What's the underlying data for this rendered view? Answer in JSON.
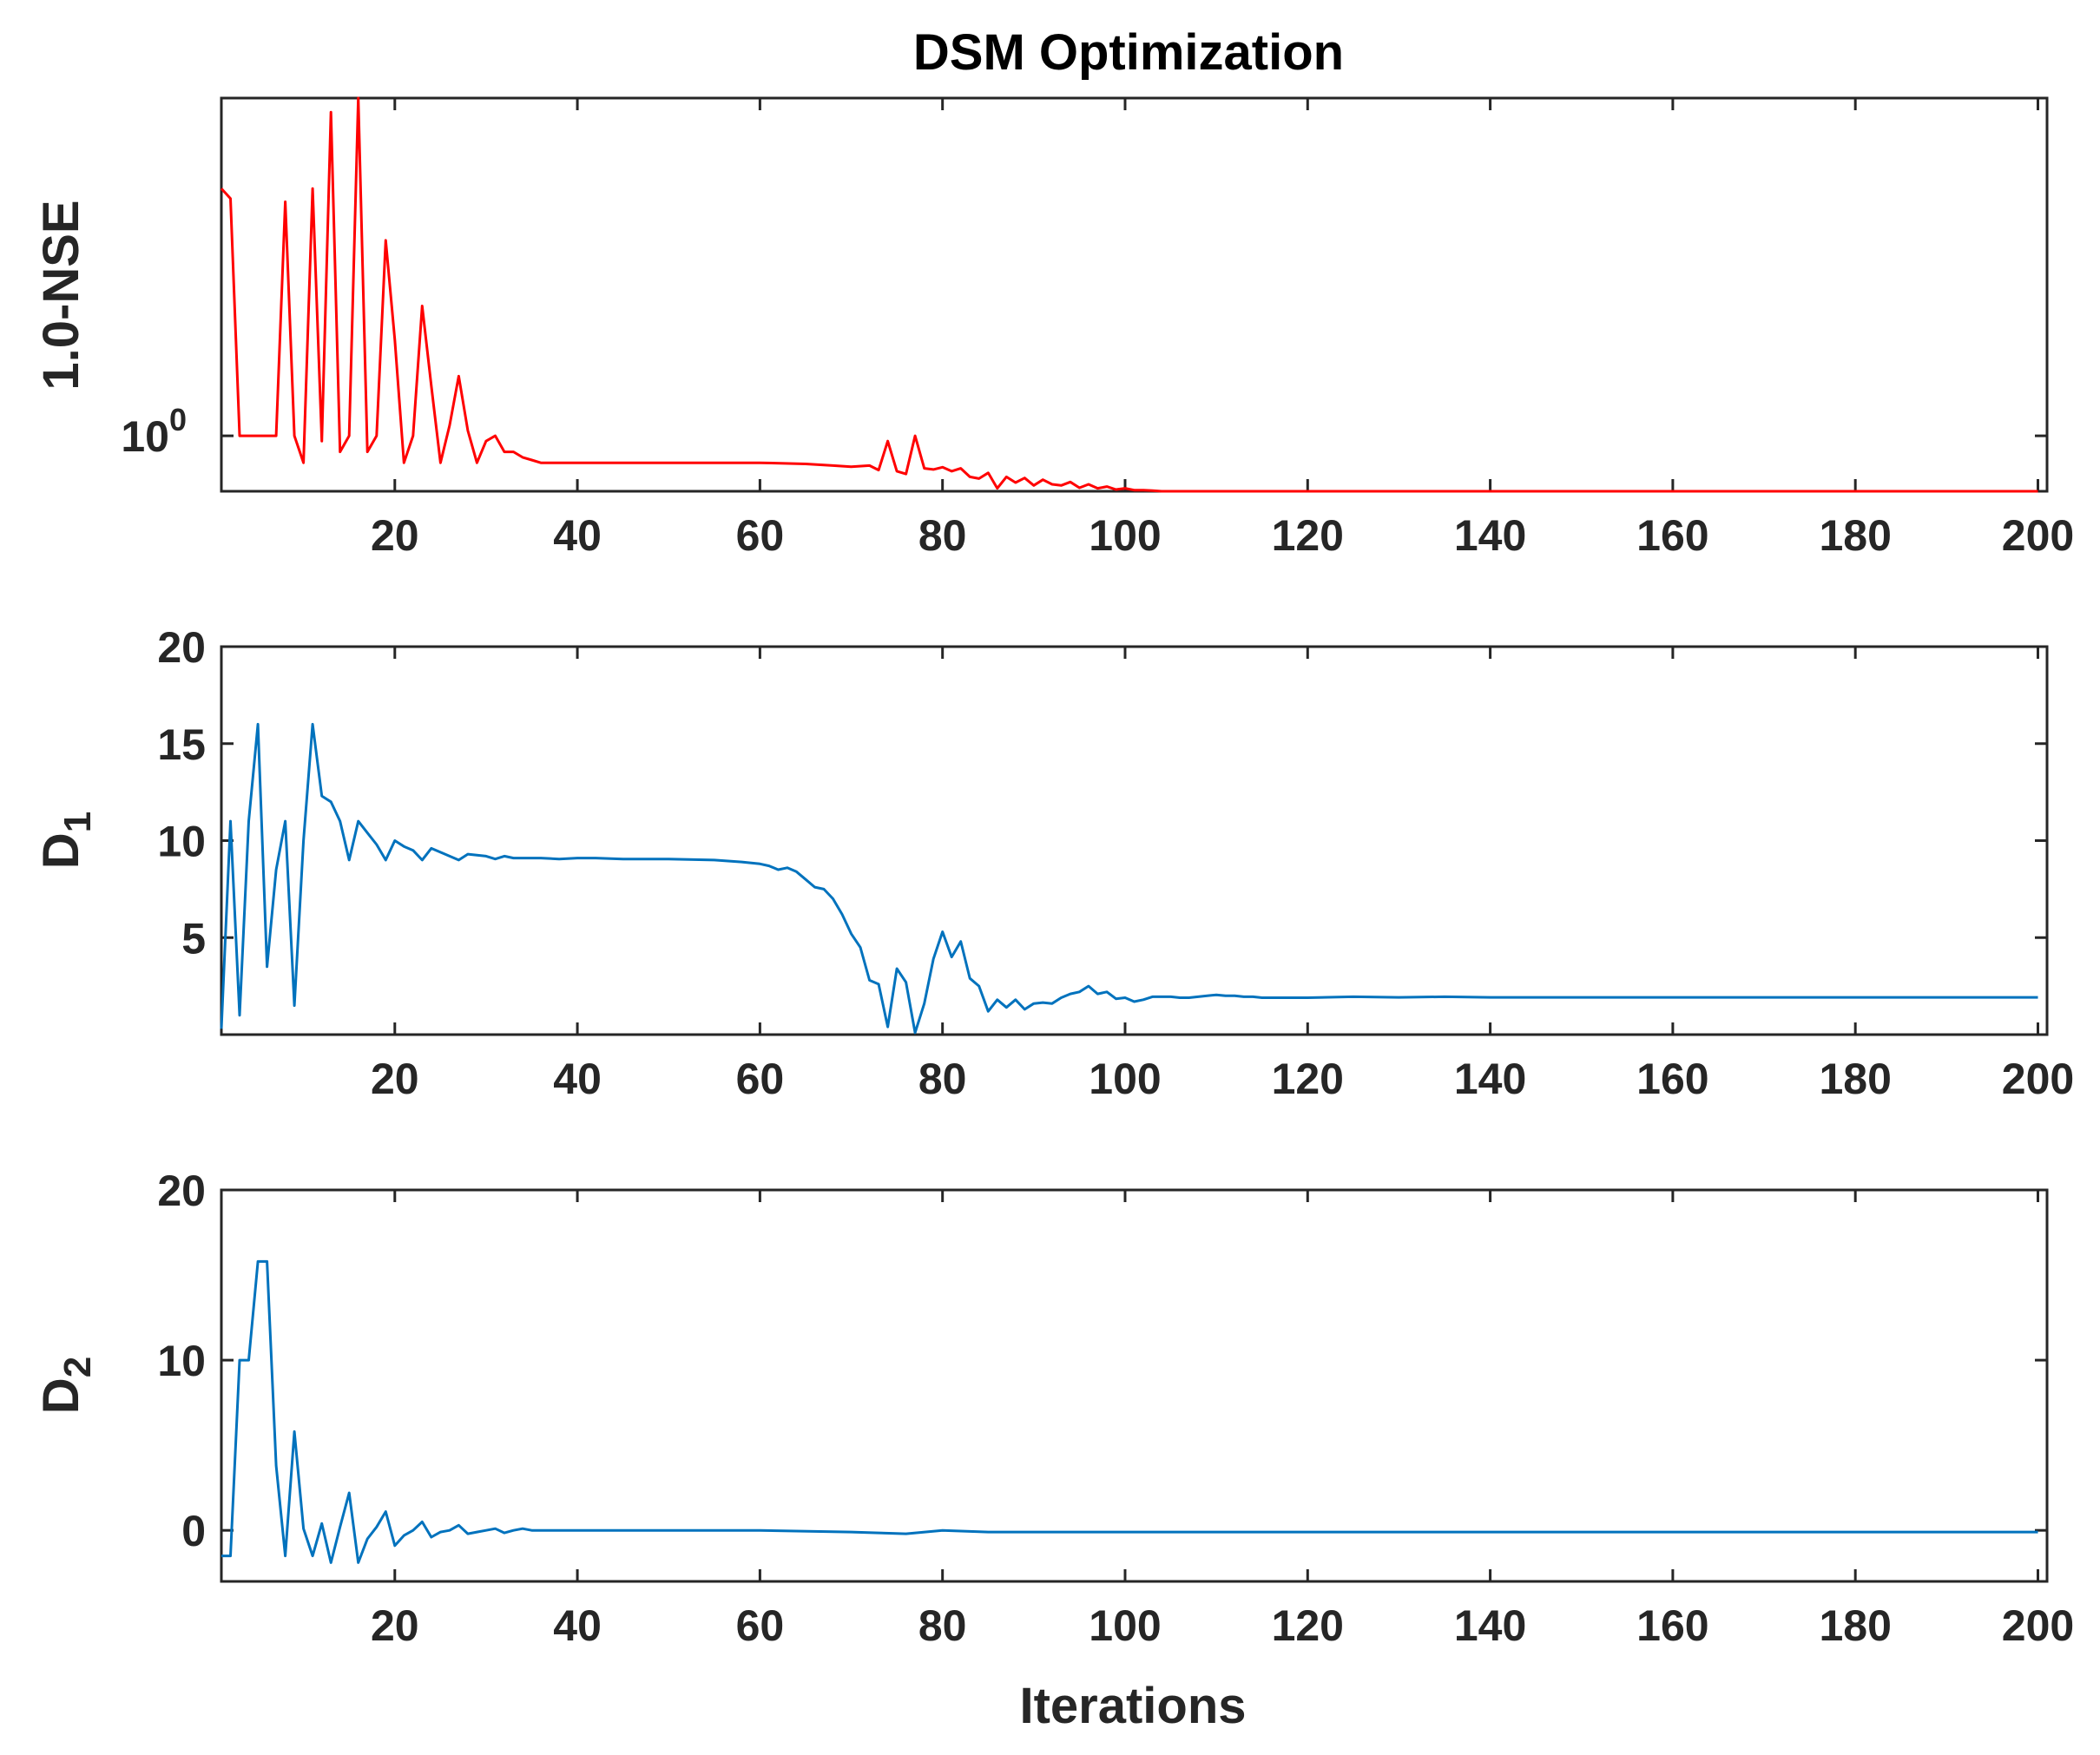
{
  "title": "DSM Optimization",
  "xlabel": "Iterations",
  "colors": {
    "nse": "#ff0000",
    "d": "#0072bd",
    "axis": "#262626"
  },
  "chart_data": [
    {
      "type": "line",
      "id": "nse",
      "title": "DSM Optimization",
      "ylabel": "1.0-NSE",
      "xlabel": "",
      "xlim": [
        1,
        201
      ],
      "xticks": [
        20,
        40,
        60,
        80,
        100,
        120,
        140,
        160,
        180,
        200
      ],
      "yscale": "log",
      "ylim": [
        0.9,
        1.9
      ],
      "yticks": [
        {
          "value": 1,
          "base": "10",
          "exp": "0"
        }
      ],
      "series": [
        {
          "name": "1.0-NSE",
          "color": "#ff0000",
          "x": [
            1,
            2,
            3,
            4,
            5,
            6,
            7,
            8,
            9,
            10,
            11,
            12,
            13,
            14,
            15,
            16,
            17,
            18,
            19,
            20,
            21,
            22,
            23,
            24,
            25,
            26,
            27,
            28,
            29,
            30,
            31,
            32,
            33,
            34,
            35,
            36,
            38,
            40,
            45,
            50,
            55,
            60,
            65,
            68,
            70,
            72,
            73,
            74,
            75,
            76,
            77,
            78,
            79,
            80,
            81,
            82,
            83,
            84,
            85,
            86,
            87,
            88,
            89,
            90,
            91,
            92,
            93,
            94,
            95,
            96,
            97,
            98,
            99,
            100,
            101,
            102,
            103,
            104,
            105,
            110,
            120,
            140,
            160,
            180,
            200
          ],
          "values": [
            1.6,
            1.57,
            1.0,
            1.0,
            1.0,
            1.0,
            1.0,
            1.56,
            1.0,
            0.95,
            1.6,
            0.99,
            1.85,
            0.97,
            1.0,
            1.9,
            0.97,
            1.0,
            1.45,
            1.2,
            0.95,
            1.0,
            1.28,
            1.1,
            0.95,
            1.02,
            1.12,
            1.01,
            0.95,
            0.99,
            1.0,
            0.97,
            0.97,
            0.96,
            0.955,
            0.95,
            0.95,
            0.95,
            0.95,
            0.95,
            0.95,
            0.95,
            0.948,
            0.945,
            0.943,
            0.945,
            0.937,
            0.99,
            0.935,
            0.93,
            1.0,
            0.94,
            0.938,
            0.942,
            0.935,
            0.94,
            0.925,
            0.922,
            0.932,
            0.905,
            0.925,
            0.915,
            0.923,
            0.91,
            0.92,
            0.912,
            0.91,
            0.916,
            0.906,
            0.912,
            0.905,
            0.908,
            0.903,
            0.905,
            0.902,
            0.902,
            0.901,
            0.9,
            0.9,
            0.9,
            0.9,
            0.9,
            0.9,
            0.9,
            0.9
          ]
        }
      ]
    },
    {
      "type": "line",
      "id": "d1",
      "ylabel": "D",
      "ylabel_sub": "1",
      "xlabel": "",
      "xlim": [
        1,
        201
      ],
      "xticks": [
        20,
        40,
        60,
        80,
        100,
        120,
        140,
        160,
        180,
        200
      ],
      "ylim": [
        0,
        20
      ],
      "yticks": [
        5,
        10,
        15,
        20
      ],
      "series": [
        {
          "name": "D1",
          "color": "#0072bd",
          "x": [
            1,
            2,
            3,
            4,
            5,
            6,
            7,
            8,
            9,
            10,
            11,
            12,
            13,
            14,
            15,
            16,
            17,
            18,
            19,
            20,
            21,
            22,
            23,
            24,
            25,
            26,
            27,
            28,
            29,
            30,
            31,
            32,
            33,
            34,
            36,
            38,
            40,
            42,
            45,
            50,
            55,
            58,
            60,
            61,
            62,
            63,
            64,
            65,
            66,
            67,
            68,
            69,
            70,
            71,
            72,
            73,
            74,
            75,
            76,
            77,
            78,
            79,
            80,
            81,
            82,
            83,
            84,
            85,
            86,
            87,
            88,
            89,
            90,
            91,
            92,
            93,
            94,
            95,
            96,
            97,
            98,
            99,
            100,
            101,
            102,
            103,
            104,
            105,
            106,
            107,
            108,
            109,
            110,
            111,
            112,
            113,
            114,
            115,
            116,
            120,
            125,
            130,
            135,
            140,
            150,
            160,
            170,
            180,
            190,
            200
          ],
          "values": [
            0.3,
            11,
            1.0,
            11,
            16,
            3.5,
            8.5,
            11,
            1.5,
            10,
            16,
            12.3,
            12,
            11,
            9.0,
            11,
            10.4,
            9.8,
            9.0,
            10,
            9.7,
            9.5,
            9.0,
            9.6,
            9.4,
            9.2,
            9.0,
            9.3,
            9.25,
            9.2,
            9.05,
            9.2,
            9.1,
            9.1,
            9.1,
            9.05,
            9.1,
            9.1,
            9.05,
            9.05,
            9.0,
            8.9,
            8.8,
            8.7,
            8.5,
            8.6,
            8.4,
            8.0,
            7.6,
            7.5,
            7.0,
            6.2,
            5.2,
            4.5,
            2.8,
            2.6,
            0.4,
            3.4,
            2.7,
            0.1,
            1.6,
            3.9,
            5.3,
            4.0,
            4.8,
            2.9,
            2.5,
            1.2,
            1.8,
            1.4,
            1.8,
            1.3,
            1.6,
            1.65,
            1.6,
            1.9,
            2.1,
            2.2,
            2.5,
            2.1,
            2.2,
            1.85,
            1.9,
            1.7,
            1.8,
            1.95,
            1.95,
            1.95,
            1.9,
            1.9,
            1.95,
            2.0,
            2.05,
            2.0,
            2.0,
            1.95,
            1.95,
            1.9,
            1.9,
            1.9,
            1.95,
            1.92,
            1.95,
            1.92,
            1.92,
            1.92,
            1.92,
            1.92,
            1.92,
            1.92
          ]
        }
      ]
    },
    {
      "type": "line",
      "id": "d2",
      "ylabel": "D",
      "ylabel_sub": "2",
      "xlabel": "Iterations",
      "xlim": [
        1,
        201
      ],
      "xticks": [
        20,
        40,
        60,
        80,
        100,
        120,
        140,
        160,
        180,
        200
      ],
      "ylim": [
        -3,
        20
      ],
      "yticks": [
        0,
        10,
        20
      ],
      "series": [
        {
          "name": "D2",
          "color": "#0072bd",
          "x": [
            1,
            2,
            3,
            4,
            5,
            6,
            7,
            8,
            9,
            10,
            11,
            12,
            13,
            14,
            15,
            16,
            17,
            18,
            19,
            20,
            21,
            22,
            23,
            24,
            25,
            26,
            27,
            28,
            29,
            30,
            31,
            32,
            33,
            34,
            35,
            36,
            40,
            50,
            60,
            70,
            73,
            76,
            80,
            85,
            90,
            100,
            120,
            150,
            180,
            200
          ],
          "values": [
            -1.5,
            -1.5,
            10,
            10,
            15.8,
            15.8,
            3.8,
            -1.5,
            5.8,
            0.1,
            -1.5,
            0.4,
            -1.9,
            0.2,
            2.2,
            -1.9,
            -0.5,
            0.2,
            1.1,
            -0.9,
            -0.3,
            0.0,
            0.5,
            -0.4,
            -0.1,
            0.0,
            0.3,
            -0.2,
            -0.1,
            0.0,
            0.1,
            -0.15,
            0.0,
            0.1,
            0.0,
            0.0,
            0.0,
            0.0,
            0.0,
            -0.1,
            -0.15,
            -0.2,
            0.0,
            -0.1,
            -0.1,
            -0.1,
            -0.1,
            -0.1,
            -0.1,
            -0.1
          ]
        }
      ]
    }
  ]
}
